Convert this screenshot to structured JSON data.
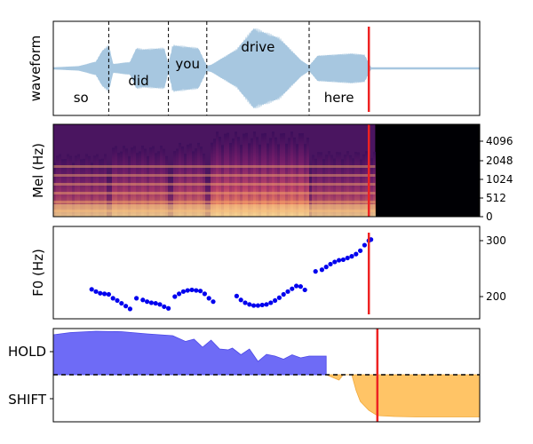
{
  "panels": {
    "waveform": {
      "ylabel": "waveform"
    },
    "mel": {
      "ylabel": "Mel (Hz)",
      "tick_labels": [
        "4096",
        "2048",
        "1024",
        "512",
        "0"
      ]
    },
    "f0": {
      "ylabel": "F0 (Hz)",
      "tick_labels": [
        "300",
        "200"
      ]
    },
    "turn": {
      "tick_labels": [
        "HOLD",
        "SHIFT"
      ]
    }
  },
  "colors": {
    "waveform": "#a7c7e0",
    "f0_points": "#0000ee",
    "hold_fill": "#6e6bf6",
    "shift_fill": "#ffc466",
    "cursor": "#ee2222",
    "boundary": "#000000"
  },
  "chart_data": [
    {
      "type": "area",
      "title": "",
      "ylabel": "waveform",
      "words": [
        {
          "text": "so",
          "start": 0.0,
          "end": 0.13
        },
        {
          "text": "did",
          "start": 0.13,
          "end": 0.27
        },
        {
          "text": "you",
          "start": 0.27,
          "end": 0.36
        },
        {
          "text": "drive",
          "start": 0.36,
          "end": 0.6
        },
        {
          "text": "here",
          "start": 0.6,
          "end": 0.74
        }
      ],
      "boundaries": [
        0.13,
        0.27,
        0.36,
        0.6
      ],
      "cursor": 0.74,
      "envelope": {
        "t": [
          0.0,
          0.06,
          0.1,
          0.115,
          0.13,
          0.14,
          0.18,
          0.195,
          0.21,
          0.26,
          0.27,
          0.28,
          0.34,
          0.36,
          0.37,
          0.43,
          0.47,
          0.53,
          0.58,
          0.6,
          0.62,
          0.7,
          0.73,
          0.745,
          1.0
        ],
        "amp": [
          0.02,
          0.05,
          0.16,
          0.42,
          0.55,
          0.1,
          0.15,
          0.48,
          0.45,
          0.48,
          0.08,
          0.55,
          0.48,
          0.06,
          0.08,
          0.45,
          0.95,
          0.72,
          0.2,
          0.06,
          0.3,
          0.35,
          0.32,
          0.02,
          0.01
        ]
      }
    },
    {
      "type": "heatmap",
      "title": "",
      "ylabel": "Mel (Hz)",
      "yticks": [
        4096,
        2048,
        1024,
        512,
        0
      ],
      "cursor": 0.74,
      "active_end": 0.755
    },
    {
      "type": "scatter",
      "title": "",
      "ylabel": "F0 (Hz)",
      "yticks": [
        300,
        200
      ],
      "ylim": [
        170,
        320
      ],
      "cursor": 0.74,
      "x": [
        0.09,
        0.1,
        0.11,
        0.12,
        0.13,
        0.14,
        0.15,
        0.16,
        0.17,
        0.18,
        0.195,
        0.21,
        0.22,
        0.23,
        0.24,
        0.25,
        0.26,
        0.27,
        0.285,
        0.295,
        0.305,
        0.315,
        0.325,
        0.335,
        0.345,
        0.355,
        0.365,
        0.375,
        0.43,
        0.44,
        0.45,
        0.46,
        0.47,
        0.48,
        0.49,
        0.5,
        0.51,
        0.52,
        0.53,
        0.54,
        0.55,
        0.56,
        0.57,
        0.58,
        0.59,
        0.615,
        0.63,
        0.64,
        0.65,
        0.66,
        0.67,
        0.68,
        0.69,
        0.7,
        0.71,
        0.72,
        0.73,
        0.74,
        0.745
      ],
      "y": [
        213,
        209,
        206,
        205,
        204,
        197,
        193,
        188,
        183,
        178,
        197,
        194,
        191,
        189,
        188,
        186,
        182,
        179,
        200,
        205,
        209,
        211,
        212,
        211,
        210,
        205,
        197,
        191,
        201,
        194,
        189,
        186,
        184,
        184,
        185,
        186,
        189,
        193,
        198,
        204,
        209,
        214,
        219,
        218,
        212,
        245,
        248,
        253,
        258,
        262,
        265,
        266,
        269,
        272,
        276,
        282,
        292,
        300,
        302
      ]
    },
    {
      "type": "area",
      "title": "",
      "categories": [
        "HOLD",
        "SHIFT"
      ],
      "cursor": 0.76,
      "series": [
        {
          "name": "HOLD",
          "x": [
            0.0,
            0.04,
            0.1,
            0.16,
            0.22,
            0.28,
            0.31,
            0.33,
            0.35,
            0.37,
            0.39,
            0.41,
            0.42,
            0.44,
            0.46,
            0.48,
            0.5,
            0.52,
            0.54,
            0.56,
            0.58,
            0.6,
            0.64
          ],
          "y": [
            0.9,
            0.95,
            0.98,
            0.97,
            0.92,
            0.88,
            0.75,
            0.8,
            0.62,
            0.78,
            0.58,
            0.56,
            0.6,
            0.45,
            0.58,
            0.3,
            0.46,
            0.42,
            0.35,
            0.45,
            0.38,
            0.42,
            0.42
          ]
        },
        {
          "name": "SHIFT",
          "x": [
            0.64,
            0.66,
            0.67,
            0.68,
            0.7,
            0.71,
            0.72,
            0.74,
            0.76,
            0.8,
            0.85,
            0.9,
            0.95,
            1.0
          ],
          "y": [
            0.0,
            -0.08,
            -0.12,
            0.0,
            0.0,
            -0.35,
            -0.6,
            -0.8,
            -0.92,
            -0.94,
            -0.95,
            -0.95,
            -0.95,
            -0.95
          ]
        }
      ]
    }
  ]
}
